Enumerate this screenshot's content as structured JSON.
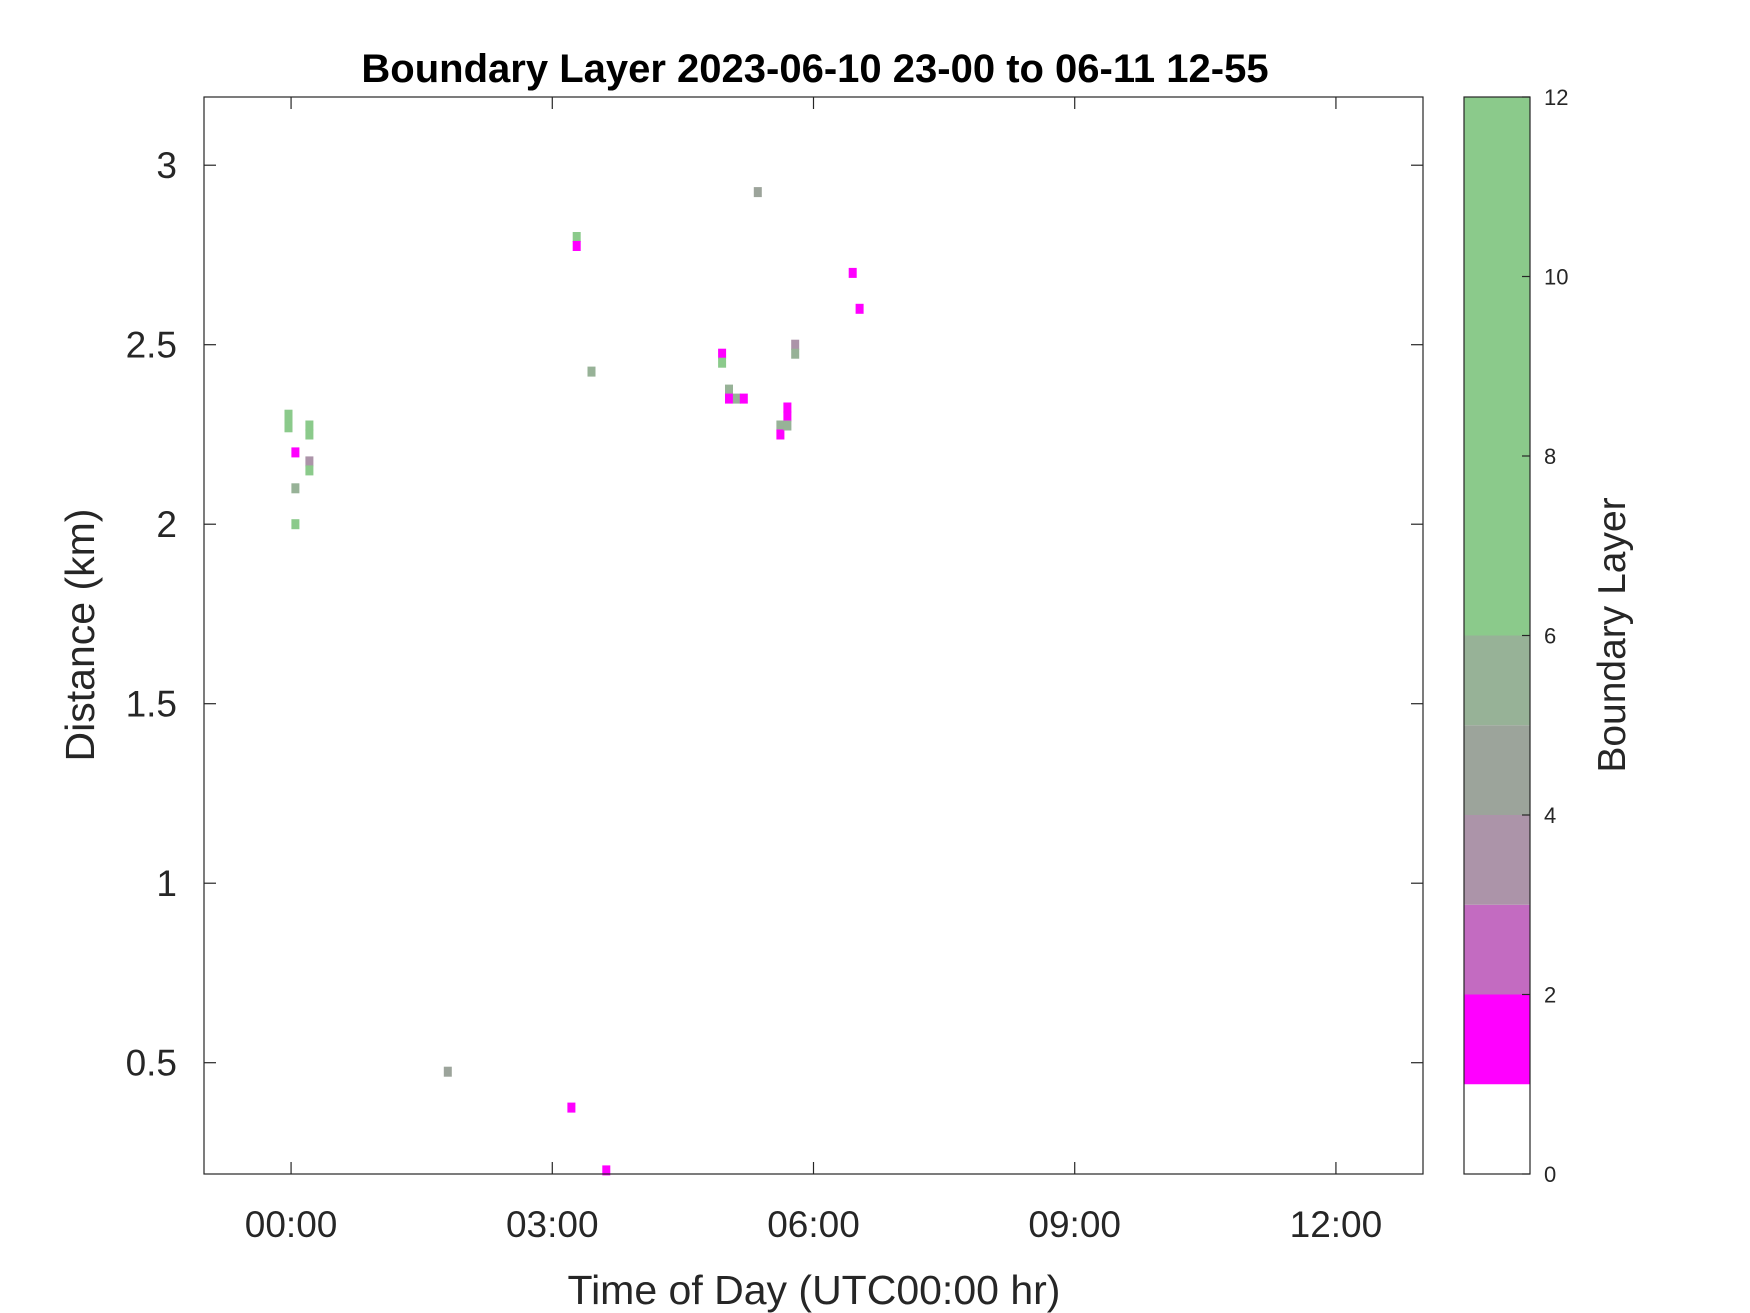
{
  "chart_data": {
    "type": "heatmap",
    "title": "Boundary Layer 2023-06-10 23-00 to 06-11 12-55",
    "xlabel": "Time of Day (UTC00:00 hr)",
    "ylabel": "Distance (km)",
    "x_unit": "hours",
    "xlim": [
      -1,
      13
    ],
    "ylim": [
      0.19,
      3.19
    ],
    "x_ticks": [
      0,
      3,
      6,
      9,
      12
    ],
    "x_tick_labels": [
      "00:00",
      "03:00",
      "06:00",
      "09:00",
      "12:00"
    ],
    "y_ticks": [
      0.5,
      1,
      1.5,
      2,
      2.5,
      3
    ],
    "y_tick_labels": [
      "0.5",
      "1",
      "1.5",
      "2",
      "2.5",
      "3"
    ],
    "grid": false,
    "colorbar": {
      "label": "Boundary Layer",
      "range": [
        0,
        12
      ],
      "tick_labels": [
        "0",
        "2",
        "4",
        "6",
        "8",
        "10",
        "12"
      ],
      "bands": [
        {
          "from": 0,
          "to": 1,
          "color": "#ffffff"
        },
        {
          "from": 1,
          "to": 2,
          "color": "#ff00ff"
        },
        {
          "from": 2,
          "to": 3,
          "color": "#c36bc1"
        },
        {
          "from": 3,
          "to": 4,
          "color": "#ac94a9"
        },
        {
          "from": 4,
          "to": 5,
          "color": "#9ca49b"
        },
        {
          "from": 5,
          "to": 6,
          "color": "#97b297"
        },
        {
          "from": 6,
          "to": 12,
          "color": "#8bca8b"
        }
      ]
    },
    "points": [
      {
        "x": -0.03,
        "y": 2.305,
        "v": 7
      },
      {
        "x": -0.03,
        "y": 2.28,
        "v": 7
      },
      {
        "x": -0.03,
        "y": 2.27,
        "v": 6
      },
      {
        "x": 0.05,
        "y": 2.2,
        "v": 1
      },
      {
        "x": 0.05,
        "y": 2.1,
        "v": 5
      },
      {
        "x": 0.05,
        "y": 2.0,
        "v": 7
      },
      {
        "x": 0.21,
        "y": 2.275,
        "v": 7
      },
      {
        "x": 0.21,
        "y": 2.25,
        "v": 6
      },
      {
        "x": 0.21,
        "y": 2.175,
        "v": 3
      },
      {
        "x": 0.21,
        "y": 2.15,
        "v": 6
      },
      {
        "x": 1.8,
        "y": 0.475,
        "v": 4
      },
      {
        "x": 3.22,
        "y": 0.375,
        "v": 1
      },
      {
        "x": 3.28,
        "y": 2.8,
        "v": 6
      },
      {
        "x": 3.28,
        "y": 2.775,
        "v": 1
      },
      {
        "x": 3.45,
        "y": 2.425,
        "v": 5
      },
      {
        "x": 3.62,
        "y": 0.2,
        "v": 1
      },
      {
        "x": 4.95,
        "y": 2.475,
        "v": 1
      },
      {
        "x": 4.95,
        "y": 2.45,
        "v": 7
      },
      {
        "x": 5.03,
        "y": 2.375,
        "v": 5
      },
      {
        "x": 5.03,
        "y": 2.35,
        "v": 1
      },
      {
        "x": 5.12,
        "y": 2.35,
        "v": 5
      },
      {
        "x": 5.2,
        "y": 2.35,
        "v": 1
      },
      {
        "x": 5.36,
        "y": 2.925,
        "v": 4
      },
      {
        "x": 5.62,
        "y": 2.275,
        "v": 5
      },
      {
        "x": 5.62,
        "y": 2.25,
        "v": 1
      },
      {
        "x": 5.7,
        "y": 2.325,
        "v": 1
      },
      {
        "x": 5.7,
        "y": 2.3,
        "v": 1
      },
      {
        "x": 5.7,
        "y": 2.275,
        "v": 5
      },
      {
        "x": 5.79,
        "y": 2.5,
        "v": 3
      },
      {
        "x": 5.79,
        "y": 2.475,
        "v": 5
      },
      {
        "x": 6.45,
        "y": 2.7,
        "v": 1
      },
      {
        "x": 6.53,
        "y": 2.6,
        "v": 1
      }
    ]
  }
}
